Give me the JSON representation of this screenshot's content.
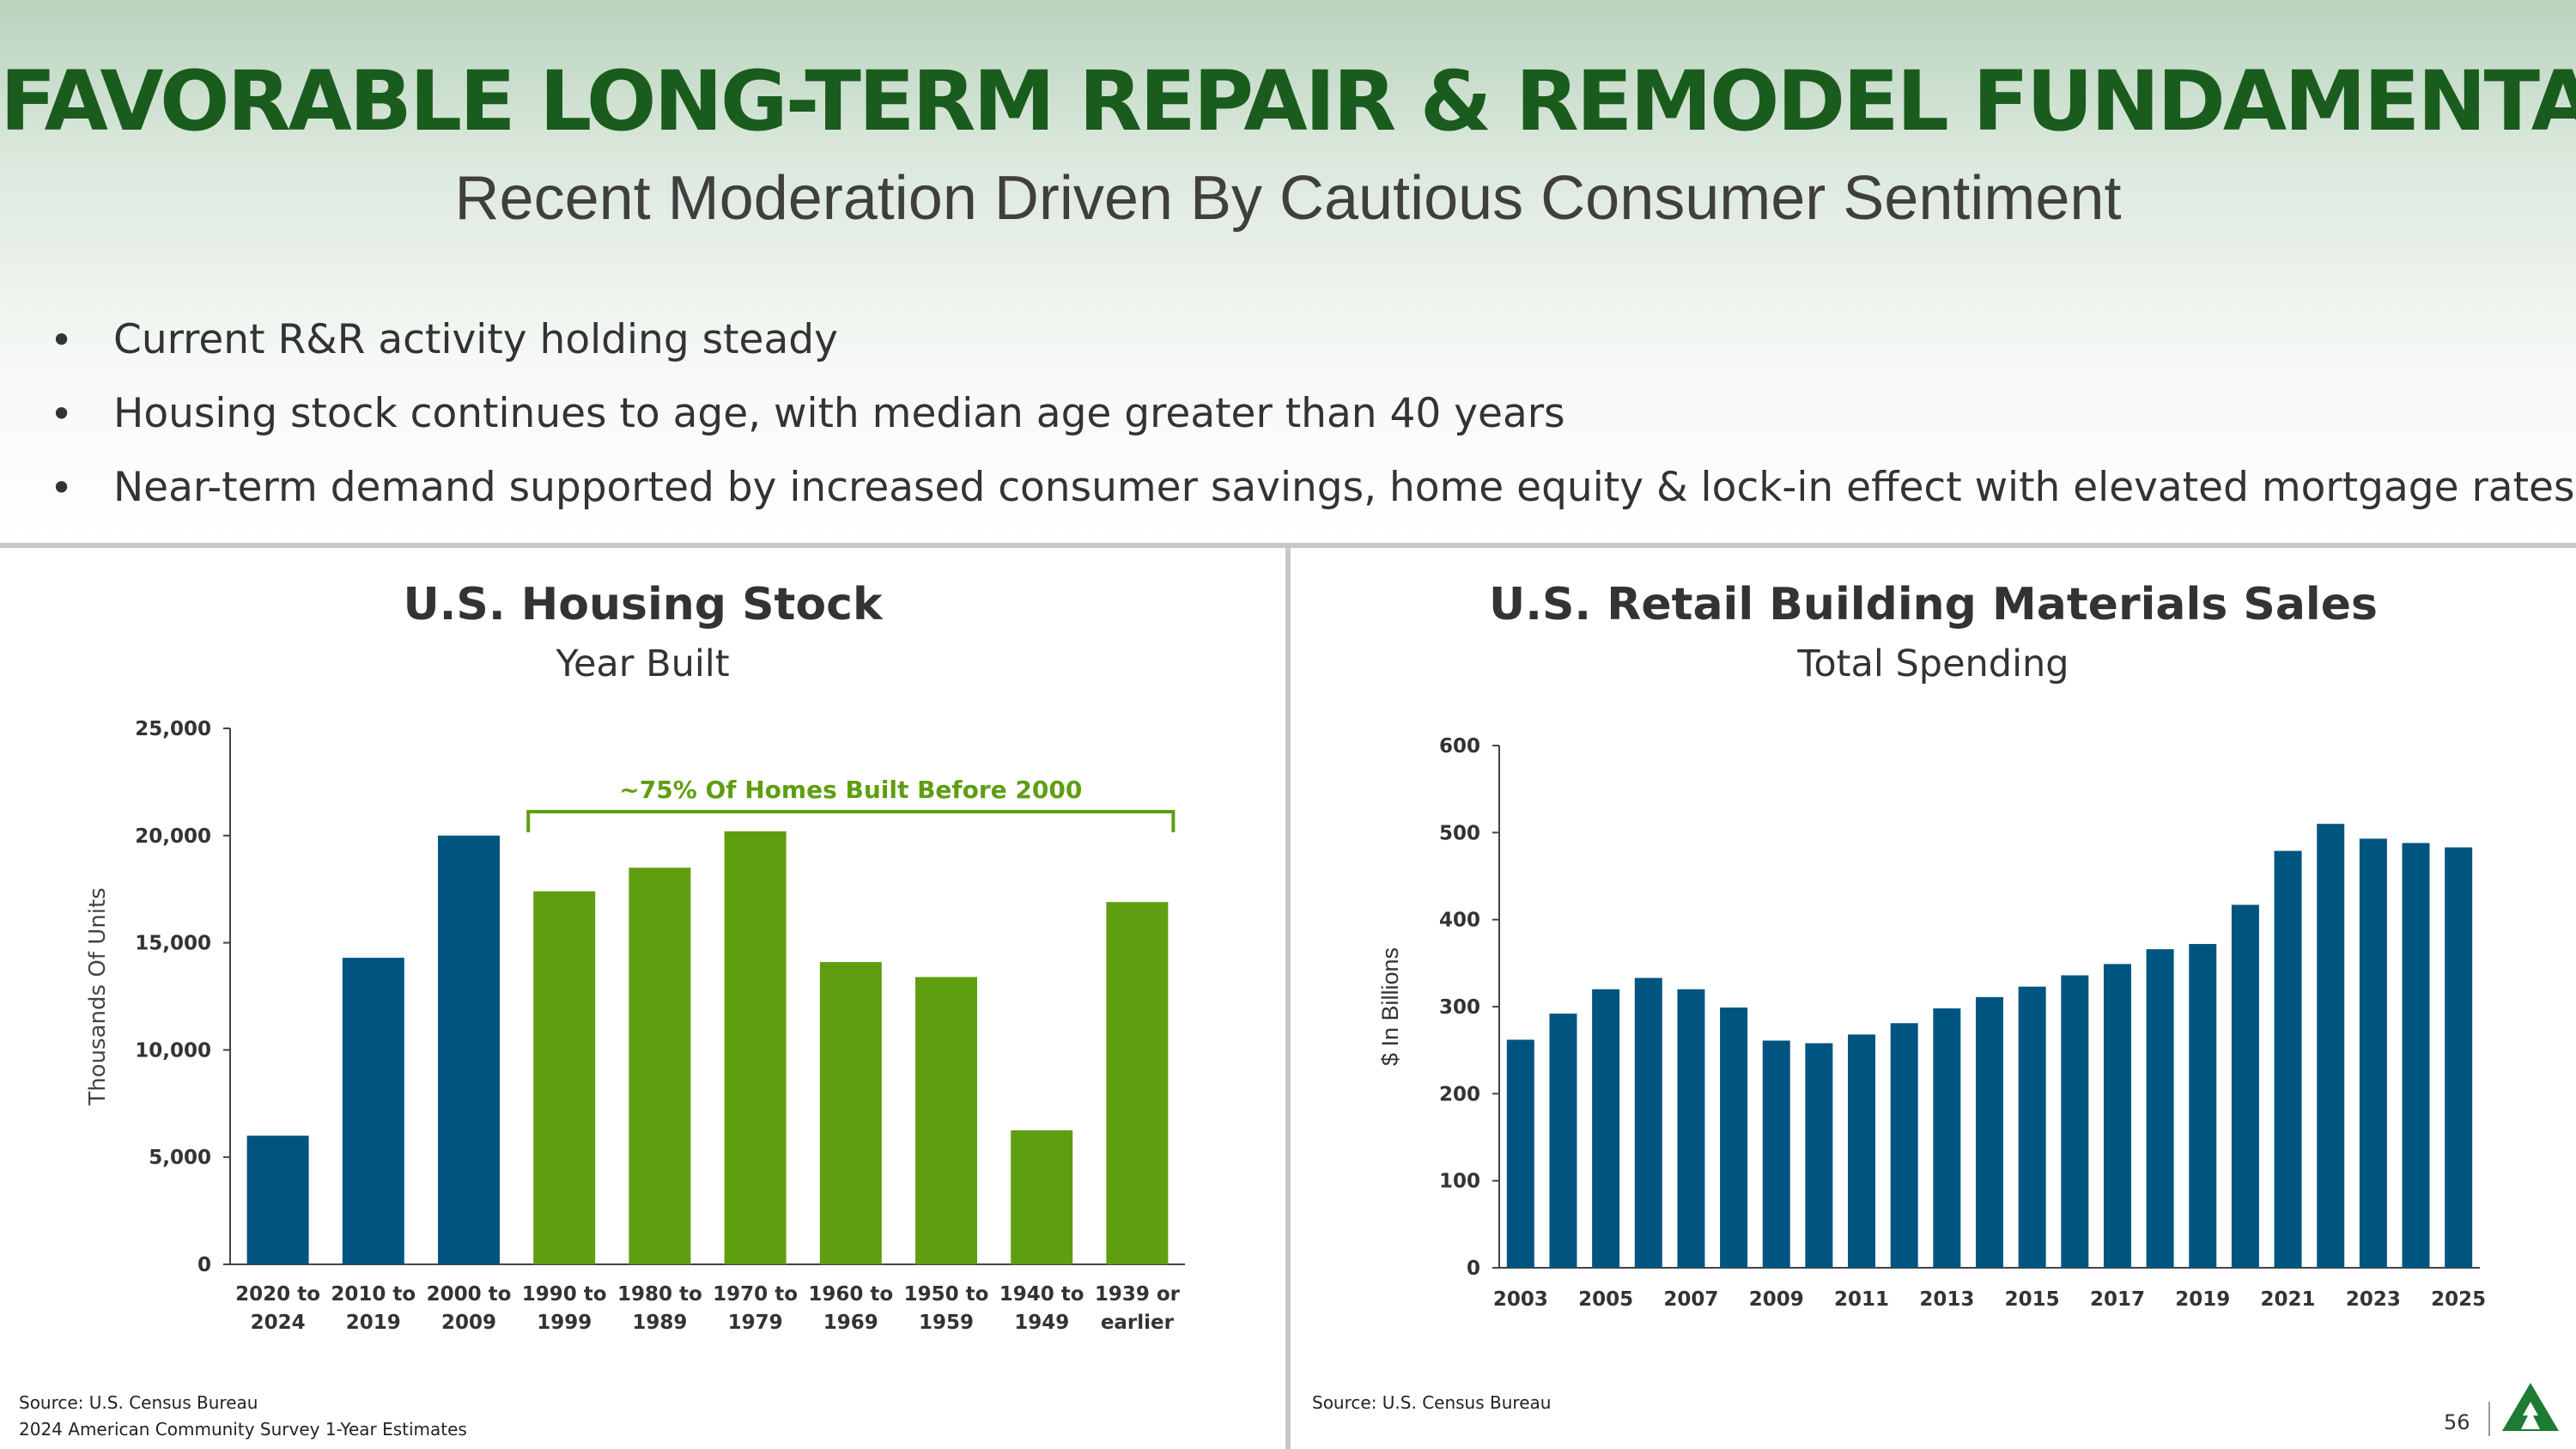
{
  "slide": {
    "title": "FAVORABLE LONG-TERM REPAIR & REMODEL FUNDAMENTALS",
    "subtitle": "Recent Moderation Driven By Cautious Consumer Sentiment",
    "bullets": [
      "Current R&R activity holding steady",
      "Housing stock continues to age, with median age greater than 40 years",
      "Near-term demand supported by increased consumer savings, home equity & lock-in effect with elevated mortgage rates"
    ],
    "bullet_glyph": "•",
    "page_number": "56",
    "colors": {
      "title_green": "#1a5c1e",
      "blue": "#005580",
      "green": "#5f9e10",
      "logo_green": "#1f7a34"
    }
  },
  "left_source": [
    "Source: U.S. Census Bureau",
    "2024 American Community Survey 1-Year Estimates"
  ],
  "right_source": [
    "Source: U.S. Census Bureau"
  ],
  "chart_data": [
    {
      "type": "bar",
      "title": "U.S. Housing Stock",
      "subtitle": "Year Built",
      "ylabel": "Thousands Of Units",
      "xlabel": "",
      "ylim": [
        0,
        25000
      ],
      "yticks": [
        0,
        5000,
        10000,
        15000,
        20000,
        25000
      ],
      "ytick_labels": [
        "0",
        "5,000",
        "10,000",
        "15,000",
        "20,000",
        "25,000"
      ],
      "categories": [
        [
          "2020 to",
          "2024"
        ],
        [
          "2010 to",
          "2019"
        ],
        [
          "2000 to",
          "2009"
        ],
        [
          "1990 to",
          "1999"
        ],
        [
          "1980 to",
          "1989"
        ],
        [
          "1970 to",
          "1979"
        ],
        [
          "1960 to",
          "1969"
        ],
        [
          "1950 to",
          "1959"
        ],
        [
          "1940 to",
          "1949"
        ],
        [
          "1939 or",
          "earlier"
        ]
      ],
      "values": [
        6000,
        14300,
        20000,
        17400,
        18500,
        20200,
        14100,
        13400,
        6250,
        16900
      ],
      "bar_colors": [
        "#005580",
        "#005580",
        "#005580",
        "#5f9e10",
        "#5f9e10",
        "#5f9e10",
        "#5f9e10",
        "#5f9e10",
        "#5f9e10",
        "#5f9e10"
      ],
      "annotation": {
        "text": "~75% Of Homes Built Before 2000",
        "from_index": 3,
        "to_index": 9
      },
      "grid": false,
      "legend": "none"
    },
    {
      "type": "bar",
      "title": "U.S. Retail Building Materials Sales",
      "subtitle": "Total Spending",
      "ylabel": "$ In Billions",
      "xlabel": "",
      "ylim": [
        0,
        600
      ],
      "yticks": [
        0,
        100,
        200,
        300,
        400,
        500,
        600
      ],
      "ytick_labels": [
        "0",
        "100",
        "200",
        "300",
        "400",
        "500",
        "600"
      ],
      "categories": [
        "2003",
        "2004",
        "2005",
        "2006",
        "2007",
        "2008",
        "2009",
        "2010",
        "2011",
        "2012",
        "2013",
        "2014",
        "2015",
        "2016",
        "2017",
        "2018",
        "2019",
        "2020",
        "2021",
        "2022",
        "2023",
        "2024",
        "2025"
      ],
      "tick_labels_shown": [
        "2003",
        "2005",
        "2007",
        "2009",
        "2011",
        "2013",
        "2015",
        "2017",
        "2019",
        "2021",
        "2023",
        "2025"
      ],
      "values": [
        262,
        292,
        320,
        333,
        320,
        299,
        261,
        258,
        268,
        281,
        298,
        311,
        323,
        336,
        349,
        366,
        372,
        417,
        479,
        510,
        493,
        488,
        483
      ],
      "bar_color": "#005580",
      "grid": false,
      "legend": "none"
    }
  ]
}
